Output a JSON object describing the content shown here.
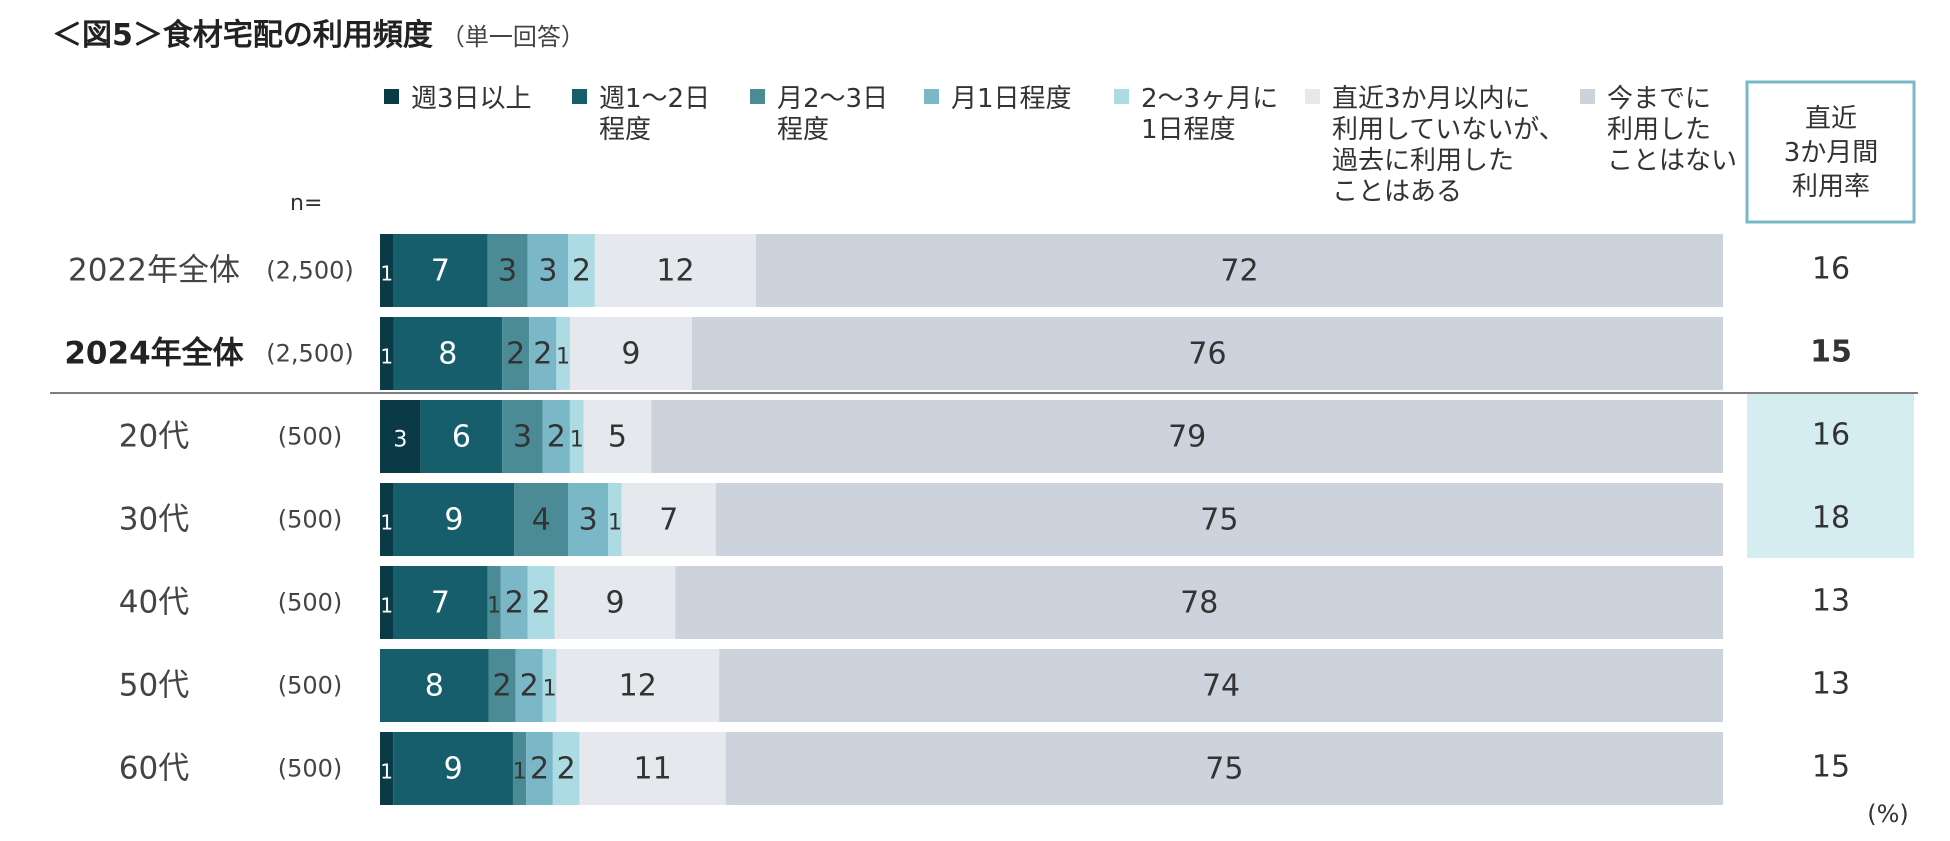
{
  "title": "＜図5＞食材宅配の利用頻度",
  "subtitle": "（単一回答）",
  "n_label": "n=",
  "unit_label": "(%)",
  "rate_header": [
    "直近",
    "3か月間",
    "利用率"
  ],
  "colors": {
    "weekly_3plus": "#0b3a47",
    "weekly_1to2": "#175e6c",
    "monthly_2to3": "#4b8b96",
    "monthly_1": "#7ab8c8",
    "bimonthly": "#acdbe3",
    "past_only": "#e5e8ed",
    "never": "#cdd3dc",
    "rate_highlight": "#d5edf1",
    "rate_border": "#7ab8c8",
    "separator": "#7f7f7f"
  },
  "chart_data": {
    "type": "bar",
    "orientation": "horizontal-stacked-100",
    "title": "＜図5＞食材宅配の利用頻度",
    "subtitle": "（単一回答）",
    "series": [
      {
        "name": "週3日以上",
        "legend_lines": [
          "週3日以上"
        ],
        "values": [
          1,
          1,
          3,
          1,
          1,
          0,
          1
        ]
      },
      {
        "name": "週1～2日程度",
        "legend_lines": [
          "週1～2日",
          "程度"
        ],
        "values": [
          7,
          8,
          6,
          9,
          7,
          8,
          9
        ]
      },
      {
        "name": "月2～3日程度",
        "legend_lines": [
          "月2～3日",
          "程度"
        ],
        "values": [
          3,
          2,
          3,
          4,
          1,
          2,
          1
        ]
      },
      {
        "name": "月1日程度",
        "legend_lines": [
          "月1日程度"
        ],
        "values": [
          3,
          2,
          2,
          3,
          2,
          2,
          2
        ]
      },
      {
        "name": "2～3ヶ月に1日程度",
        "legend_lines": [
          "2～3ヶ月に",
          "1日程度"
        ],
        "values": [
          2,
          1,
          1,
          1,
          2,
          1,
          2
        ]
      },
      {
        "name": "直近3か月以内に利用していないが、過去に利用したことはある",
        "legend_lines": [
          "直近3か月以内に",
          "利用していないが、",
          "過去に利用した",
          "ことはある"
        ],
        "values": [
          12,
          9,
          5,
          7,
          9,
          12,
          11
        ]
      },
      {
        "name": "今までに利用したことはない",
        "legend_lines": [
          "今までに",
          "利用した",
          "ことはない"
        ],
        "values": [
          72,
          76,
          79,
          75,
          78,
          74,
          75
        ]
      }
    ],
    "rows": [
      {
        "label": "2022年全体",
        "n": "(2,500)",
        "rate": 16,
        "bold": false,
        "highlight": false
      },
      {
        "label": "2024年全体",
        "n": "(2,500)",
        "rate": 15,
        "bold": true,
        "highlight": false
      },
      {
        "label": "20代",
        "n": "(500)",
        "rate": 16,
        "bold": false,
        "highlight": true
      },
      {
        "label": "30代",
        "n": "(500)",
        "rate": 18,
        "bold": false,
        "highlight": true
      },
      {
        "label": "40代",
        "n": "(500)",
        "rate": 13,
        "bold": false,
        "highlight": false
      },
      {
        "label": "50代",
        "n": "(500)",
        "rate": 13,
        "bold": false,
        "highlight": false
      },
      {
        "label": "60代",
        "n": "(500)",
        "rate": 15,
        "bold": false,
        "highlight": false
      }
    ],
    "xlim": [
      0,
      100
    ],
    "legend_position": "top",
    "grid": false
  }
}
